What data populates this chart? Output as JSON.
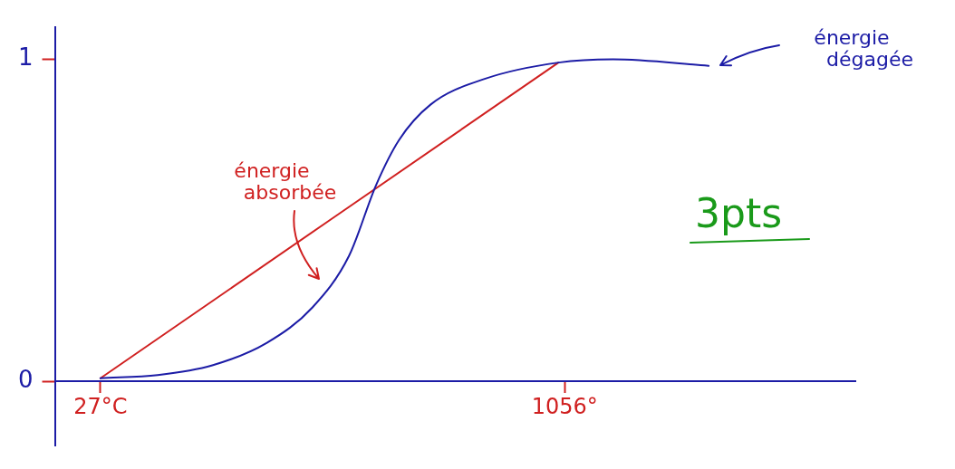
{
  "chart_data": {
    "type": "line",
    "xlim": [
      -74,
      1700
    ],
    "ylim": [
      -0.2,
      1.1
    ],
    "xticks": [
      {
        "value": 27,
        "label": "27°C"
      },
      {
        "value": 1056,
        "label": "1056°"
      }
    ],
    "yticks": [
      0,
      1
    ],
    "series": [
      {
        "color": "#1c1ca6",
        "x": [
          27,
          154,
          275,
          396,
          497,
          578,
          638,
          689,
          759,
          880,
          1042,
          1163,
          1375
        ],
        "values": [
          0.01,
          0.02,
          0.05,
          0.12,
          0.23,
          0.39,
          0.61,
          0.75,
          0.86,
          0.94,
          0.99,
          1.0,
          0.98
        ]
      },
      {
        "color": "#d02020",
        "x": [
          27,
          1042
        ],
        "values": [
          0.01,
          0.99
        ]
      }
    ],
    "annotations": [
      "énergie absorbée",
      "énergie dégagée",
      "3pts"
    ],
    "grid": false,
    "legend": false,
    "marker": "none",
    "line_style": "solid"
  }
}
